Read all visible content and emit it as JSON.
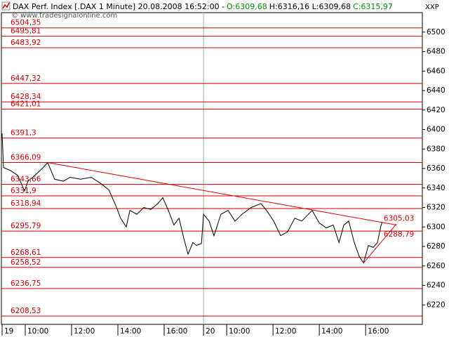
{
  "header": {
    "title": "DAX Perf. Index [.DAX  1 Minute] 20.08.2008 16:52:00 -",
    "open": "O:6309,68",
    "high_low": "H:6316,16 L:6309,68",
    "close": "C:6315,97",
    "watermark": "© www.tradesignalonline.com",
    "corner": "XXP"
  },
  "chart_data": {
    "type": "line",
    "xlim": [
      9,
      27.15
    ],
    "ylim": [
      6200,
      6520
    ],
    "xticks": [
      {
        "value": 9,
        "label": "19"
      },
      {
        "value": 10,
        "label": "10:00"
      },
      {
        "value": 12,
        "label": "12:00"
      },
      {
        "value": 14,
        "label": "14:00"
      },
      {
        "value": 16,
        "label": "16:00"
      },
      {
        "value": 17.7,
        "label": "20"
      },
      {
        "value": 18.7,
        "label": "10:00"
      },
      {
        "value": 20.7,
        "label": "12:00"
      },
      {
        "value": 22.7,
        "label": "14:00"
      },
      {
        "value": 24.7,
        "label": "16:00"
      }
    ],
    "yticks": [
      6220,
      6240,
      6260,
      6280,
      6300,
      6320,
      6340,
      6360,
      6380,
      6400,
      6420,
      6440,
      6460,
      6480,
      6500
    ],
    "levels": [
      {
        "value": 6504.35,
        "label": "6504,35"
      },
      {
        "value": 6495.81,
        "label": "6495,81"
      },
      {
        "value": 6483.92,
        "label": "6483,92"
      },
      {
        "value": 6447.32,
        "label": "6447,32"
      },
      {
        "value": 6428.34,
        "label": "6428,34"
      },
      {
        "value": 6421.01,
        "label": "6421,01"
      },
      {
        "value": 6391.3,
        "label": "6391,3"
      },
      {
        "value": 6366.09,
        "label": "6366,09"
      },
      {
        "value": 6343.66,
        "label": "6343,66"
      },
      {
        "value": 6331.9,
        "label": "6331,9"
      },
      {
        "value": 6318.94,
        "label": "6318,94"
      },
      {
        "value": 6295.79,
        "label": "6295,79"
      },
      {
        "value": 6268.61,
        "label": "6268,61"
      },
      {
        "value": 6258.52,
        "label": "6258,52"
      },
      {
        "value": 6236.75,
        "label": "6236,75"
      },
      {
        "value": 6208.53,
        "label": "6208,53"
      }
    ],
    "level_color": "#d00000",
    "separator_color": "#8fc08f",
    "annotations": [
      {
        "value": 6305.03,
        "label": "6305,03"
      },
      {
        "value": 6288.79,
        "label": "6288,79"
      }
    ],
    "series": [
      {
        "color": "#000000",
        "x": [
          9.0,
          9.06,
          9.36,
          9.67,
          9.97,
          10.12,
          10.42,
          10.73,
          10.97,
          11.27,
          11.64,
          11.94,
          12.39,
          12.85,
          13.3,
          13.61,
          13.91,
          14.12,
          14.36,
          14.52,
          14.82,
          15.12,
          15.42,
          15.73,
          15.94,
          16.18,
          16.42,
          16.64,
          16.85,
          17.03,
          17.24,
          17.39,
          17.61,
          17.7,
          17.94,
          18.15,
          18.45,
          18.76,
          19.06,
          19.36,
          19.76,
          20.18,
          20.42,
          20.73,
          21.03,
          21.33,
          21.64,
          21.94,
          22.39,
          22.7,
          23.0,
          23.3,
          23.55,
          23.76,
          23.97,
          24.21,
          24.42,
          24.61,
          24.82,
          25.03,
          25.21,
          25.36,
          25.42
        ],
        "values": [
          6396,
          6361,
          6358,
          6353,
          6337,
          6347,
          6353,
          6360,
          6366,
          6349,
          6347,
          6351,
          6349,
          6351,
          6344,
          6338,
          6322,
          6309,
          6300,
          6317,
          6313,
          6320,
          6318,
          6324,
          6330,
          6317,
          6302,
          6309,
          6288,
          6272,
          6284,
          6281,
          6283,
          6313,
          6306,
          6291,
          6313,
          6317,
          6306,
          6313,
          6320,
          6324,
          6317,
          6306,
          6291,
          6295,
          6309,
          6306,
          6317,
          6304,
          6299,
          6302,
          6284,
          6302,
          6306,
          6284,
          6270,
          6263,
          6281,
          6279,
          6284,
          6301,
          6305
        ]
      },
      {
        "color": "#e00000",
        "x": [
          10.97,
          26.03
        ],
        "values": [
          6366.09,
          6302
        ]
      },
      {
        "color": "#e00000",
        "x": [
          24.61,
          26.03
        ],
        "values": [
          6263,
          6303
        ]
      }
    ]
  }
}
